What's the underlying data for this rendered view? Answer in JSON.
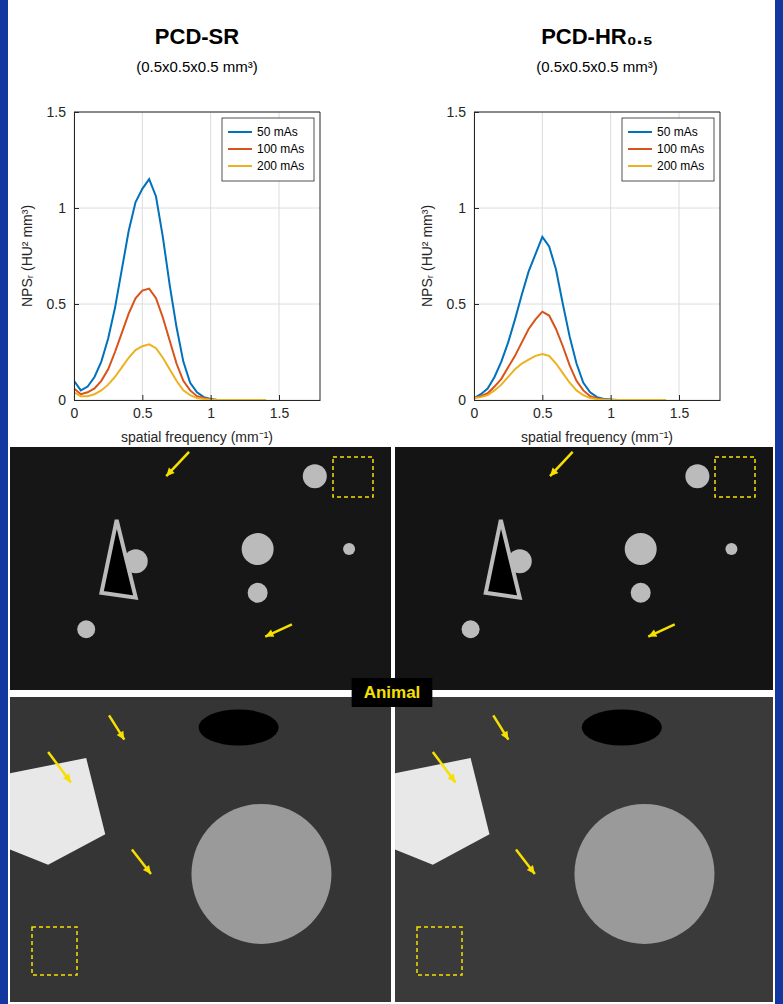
{
  "chart_data": [
    {
      "type": "line",
      "title": "PCD-SR",
      "subtitle": "(0.5x0.5x0.5 mm³)",
      "xlabel": "spatial frequency (mm⁻¹)",
      "ylabel": "NPSᵣ (HU² mm³)",
      "x": [
        0,
        0.05,
        0.1,
        0.15,
        0.2,
        0.25,
        0.3,
        0.35,
        0.4,
        0.45,
        0.5,
        0.55,
        0.6,
        0.65,
        0.7,
        0.75,
        0.8,
        0.85,
        0.9,
        0.95,
        1.0,
        1.05,
        1.1,
        1.15,
        1.2,
        1.25,
        1.3,
        1.35,
        1.4
      ],
      "series": [
        {
          "name": "50 mAs",
          "color": "#0072bd",
          "values": [
            0.1,
            0.05,
            0.07,
            0.12,
            0.2,
            0.32,
            0.48,
            0.68,
            0.88,
            1.03,
            1.1,
            1.15,
            1.06,
            0.85,
            0.6,
            0.38,
            0.2,
            0.09,
            0.04,
            0.015,
            0.005,
            0,
            0,
            0,
            0,
            0,
            0,
            0,
            0
          ]
        },
        {
          "name": "100 mAs",
          "color": "#d95319",
          "values": [
            0.06,
            0.03,
            0.04,
            0.06,
            0.1,
            0.16,
            0.25,
            0.35,
            0.45,
            0.53,
            0.57,
            0.58,
            0.53,
            0.43,
            0.31,
            0.19,
            0.1,
            0.05,
            0.02,
            0.01,
            0.003,
            0,
            0,
            0,
            0,
            0,
            0,
            0,
            0
          ]
        },
        {
          "name": "200 mAs",
          "color": "#edb120",
          "values": [
            0.04,
            0.02,
            0.02,
            0.03,
            0.05,
            0.08,
            0.12,
            0.17,
            0.22,
            0.26,
            0.28,
            0.29,
            0.27,
            0.22,
            0.16,
            0.1,
            0.05,
            0.025,
            0.01,
            0.005,
            0.001,
            0,
            0,
            0,
            0,
            0,
            0,
            0,
            0
          ]
        }
      ],
      "xlim": [
        0,
        1.8
      ],
      "xticks": [
        0,
        0.5,
        1,
        1.5
      ],
      "ylim": [
        0,
        1.5
      ],
      "yticks": [
        0,
        0.5,
        1,
        1.5
      ],
      "grid": true,
      "legend": "upper right"
    },
    {
      "type": "line",
      "title": "PCD-HR₀.₅",
      "subtitle": "(0.5x0.5x0.5 mm³)",
      "xlabel": "spatial frequency (mm⁻¹)",
      "ylabel": "NPSᵣ (HU² mm³)",
      "x": [
        0,
        0.05,
        0.1,
        0.15,
        0.2,
        0.25,
        0.3,
        0.35,
        0.4,
        0.45,
        0.5,
        0.55,
        0.6,
        0.65,
        0.7,
        0.75,
        0.8,
        0.85,
        0.9,
        0.95,
        1.0,
        1.05,
        1.1,
        1.15,
        1.2,
        1.25,
        1.3,
        1.35,
        1.4
      ],
      "series": [
        {
          "name": "50 mAs",
          "color": "#0072bd",
          "values": [
            0.01,
            0.03,
            0.06,
            0.12,
            0.2,
            0.3,
            0.42,
            0.55,
            0.67,
            0.76,
            0.85,
            0.8,
            0.68,
            0.5,
            0.33,
            0.19,
            0.09,
            0.04,
            0.015,
            0.005,
            0.002,
            0,
            0,
            0,
            0,
            0,
            0,
            0,
            0
          ]
        },
        {
          "name": "100 mAs",
          "color": "#d95319",
          "values": [
            0.01,
            0.02,
            0.035,
            0.07,
            0.11,
            0.17,
            0.23,
            0.3,
            0.37,
            0.42,
            0.46,
            0.44,
            0.37,
            0.28,
            0.18,
            0.1,
            0.05,
            0.02,
            0.008,
            0.003,
            0.001,
            0,
            0,
            0,
            0,
            0,
            0,
            0,
            0
          ]
        },
        {
          "name": "200 mAs",
          "color": "#edb120",
          "values": [
            0.01,
            0.015,
            0.025,
            0.05,
            0.08,
            0.12,
            0.16,
            0.19,
            0.21,
            0.23,
            0.24,
            0.23,
            0.19,
            0.14,
            0.09,
            0.05,
            0.025,
            0.01,
            0.004,
            0.001,
            0,
            0,
            0,
            0,
            0,
            0,
            0,
            0,
            0
          ]
        }
      ],
      "xlim": [
        0,
        1.8
      ],
      "xticks": [
        0,
        0.5,
        1,
        1.5
      ],
      "ylim": [
        0,
        1.5
      ],
      "yticks": [
        0,
        0.5,
        1,
        1.5
      ],
      "grid": true,
      "legend": "upper right"
    }
  ],
  "panel_label": "Animal"
}
